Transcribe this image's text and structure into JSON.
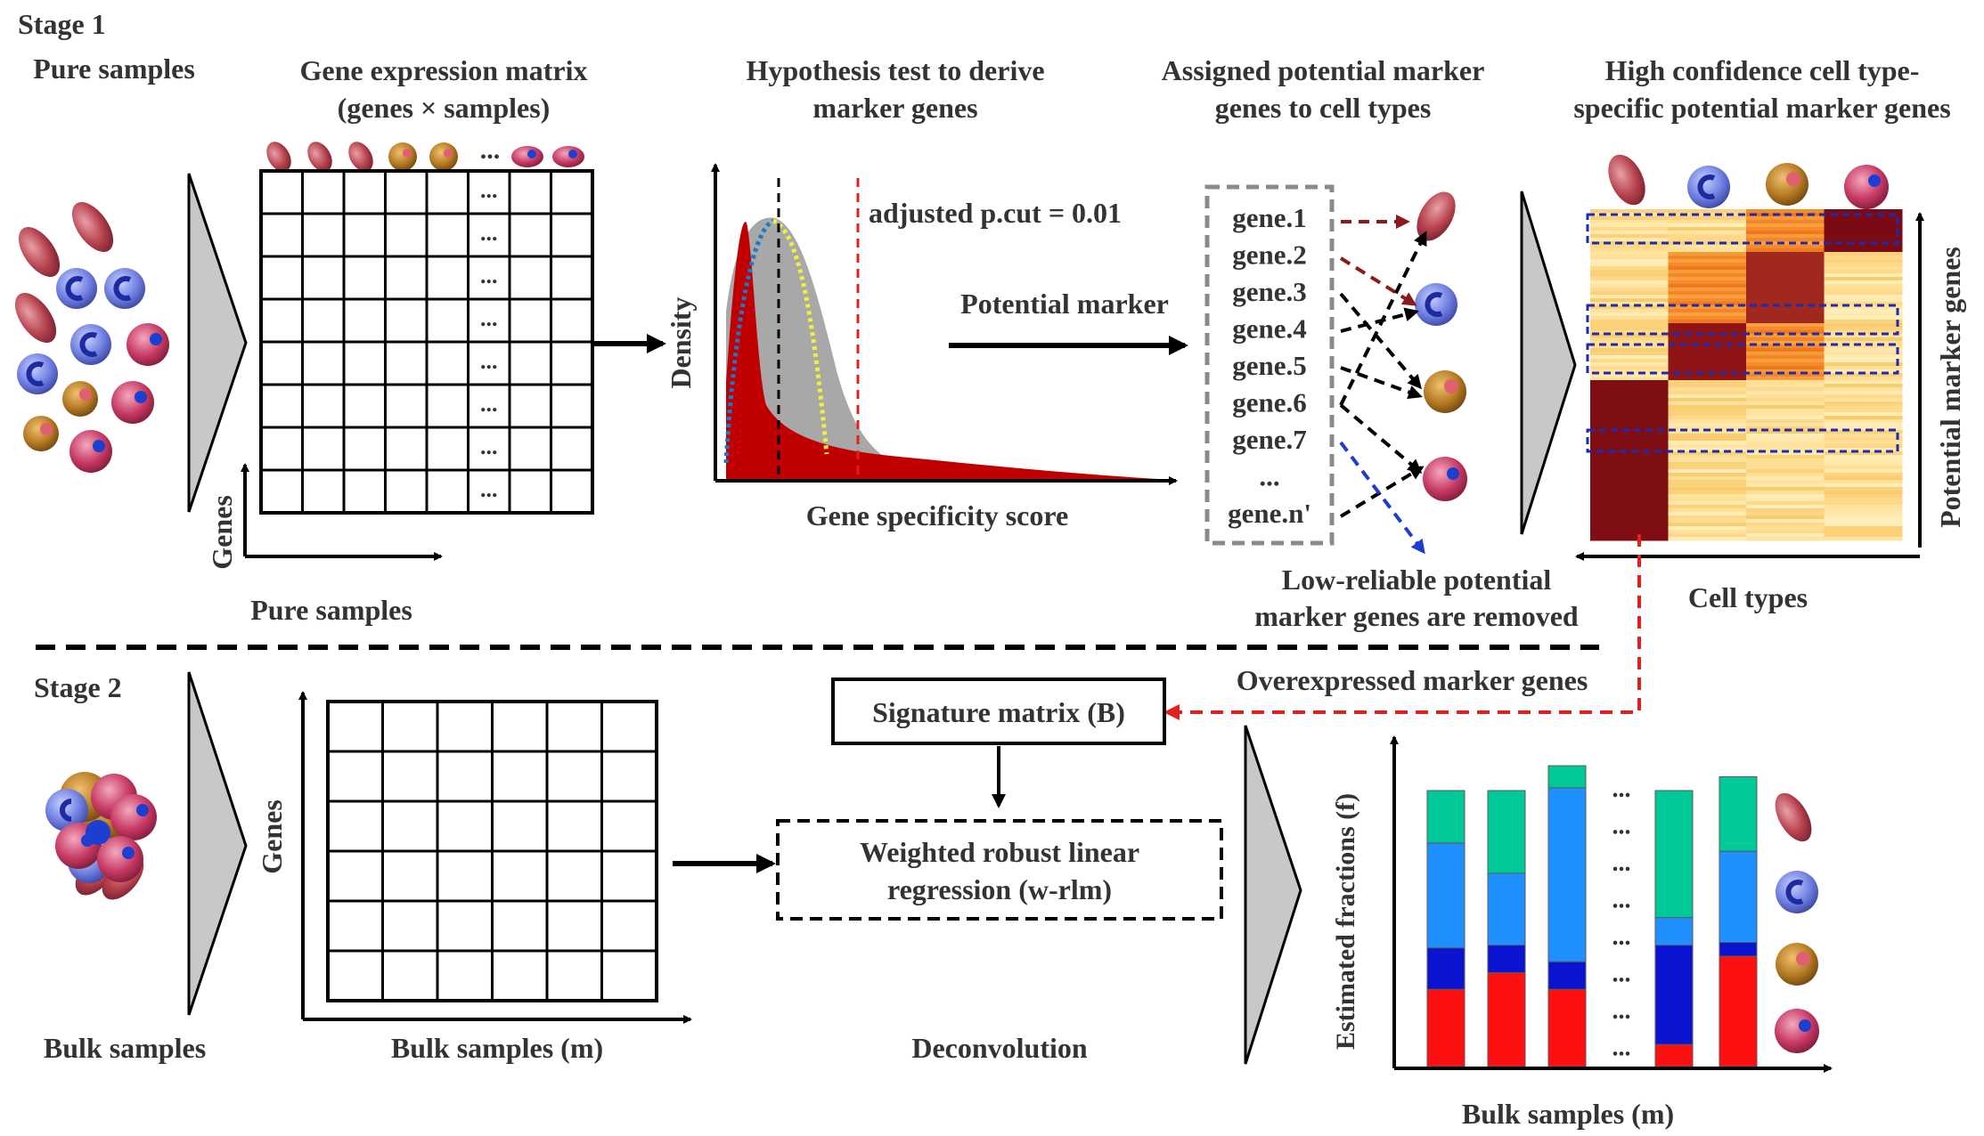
{
  "stage1": {
    "label": "Stage 1",
    "pure_samples_title": "Pure samples",
    "matrix_title": [
      "Gene expression matrix",
      "(genes × samples)"
    ],
    "matrix_ellipsis": "...",
    "axis_genes": "Genes",
    "axis_pure_samples": "Pure samples",
    "hypothesis_title": [
      "Hypothesis test to derive",
      "marker genes"
    ],
    "pcut_label": "adjusted p.cut = 0.01",
    "density_label": "Density",
    "specificity_label": "Gene specificity score",
    "potential_marker_label": "Potential marker",
    "assigned_title": [
      "Assigned potential marker",
      "genes to cell types"
    ],
    "genes": [
      "gene.1",
      "gene.2",
      "gene.3",
      "gene.4",
      "gene.5",
      "gene.6",
      "gene.7",
      "...",
      "gene.n'"
    ],
    "low_reliable_label": [
      "Low-reliable potential",
      "marker genes are removed"
    ],
    "high_conf_title": [
      "High confidence cell type-",
      "specific potential marker genes"
    ],
    "heatmap_y_label": "Potential marker genes",
    "heatmap_x_label": "Cell types"
  },
  "stage2": {
    "label": "Stage 2",
    "overexpressed_label": "Overexpressed marker genes",
    "signature_label": "Signature matrix (B)",
    "wrlm_label": [
      "Weighted robust linear",
      "regression (w-rlm)"
    ],
    "bulk_samples_label": "Bulk samples",
    "axis_genes": "Genes",
    "bulk_m_label": "Bulk samples (m)",
    "deconvolution_label": "Deconvolution",
    "fractions_y_label": "Estimated fractions (f)",
    "fractions_x_label": "Bulk samples (m)",
    "bar_ellipsis": "..."
  },
  "colors": {
    "cell_red": "#b8444f",
    "cell_blue": "#5c6bd6",
    "cell_brown": "#b57a22",
    "cell_pink": "#c73a63",
    "dark_red": "#8b1a1a",
    "arrow_blue": "#1e3ccf",
    "dashed_red": "#e02020",
    "bar_green": "#00c896",
    "bar_sky": "#1e90ff",
    "bar_navy": "#0a14d0",
    "bar_red": "#ff1010"
  },
  "chart_data": {
    "type": "bar",
    "stacked": true,
    "series": [
      {
        "values": [
          0.28,
          0.34,
          0.28,
          0.08,
          0.4
        ]
      },
      {
        "values": [
          0.15,
          0.1,
          0.1,
          0.36,
          0.05
        ]
      },
      {
        "values": [
          0.38,
          0.26,
          0.63,
          0.1,
          0.33
        ]
      },
      {
        "values": [
          0.19,
          0.3,
          0.08,
          0.46,
          0.27
        ]
      }
    ]
  }
}
